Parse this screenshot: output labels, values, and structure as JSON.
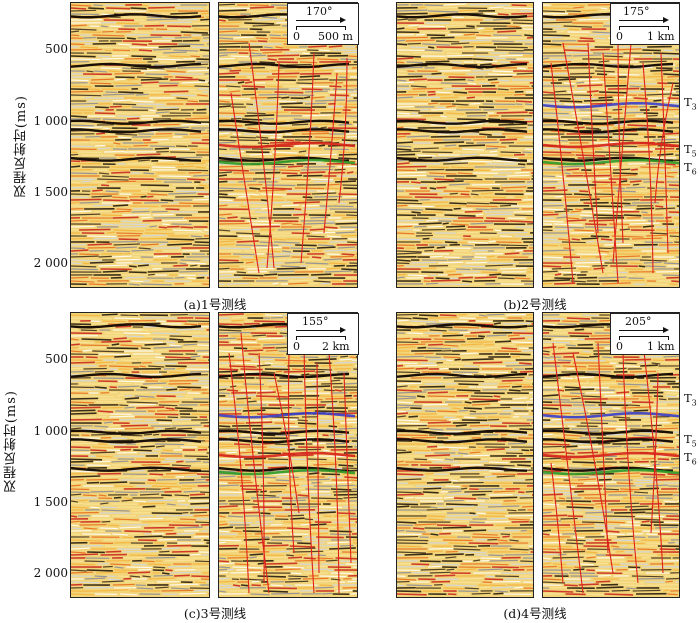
{
  "y_axis": {
    "label": "双程反射时(ms)",
    "ticks": [
      "500",
      "1 000",
      "1 500",
      "2 000"
    ]
  },
  "panels": [
    {
      "caption": "(a)1号测线",
      "azimuth": "170°",
      "scale_start": "0",
      "scale_end": "500 m",
      "horizons": []
    },
    {
      "caption": "(b)2号测线",
      "azimuth": "175°",
      "scale_start": "0",
      "scale_end": "1 km",
      "horizons": [
        "T3",
        "T5",
        "T6"
      ]
    },
    {
      "caption": "(c)3号测线",
      "azimuth": "155°",
      "scale_start": "0",
      "scale_end": "2 km",
      "horizons": []
    },
    {
      "caption": "(d)4号测线",
      "azimuth": "205°",
      "scale_start": "0",
      "scale_end": "1 km",
      "horizons": [
        "T3",
        "T5",
        "T6"
      ]
    }
  ],
  "colors": {
    "fault": "#e0201a",
    "horizon_blue": "#3a3ec8",
    "horizon_green": "#2f9a2a",
    "horizon_red": "#d62418",
    "trough_dark": "#1a1008",
    "background_yellow": "#f2d57a"
  }
}
